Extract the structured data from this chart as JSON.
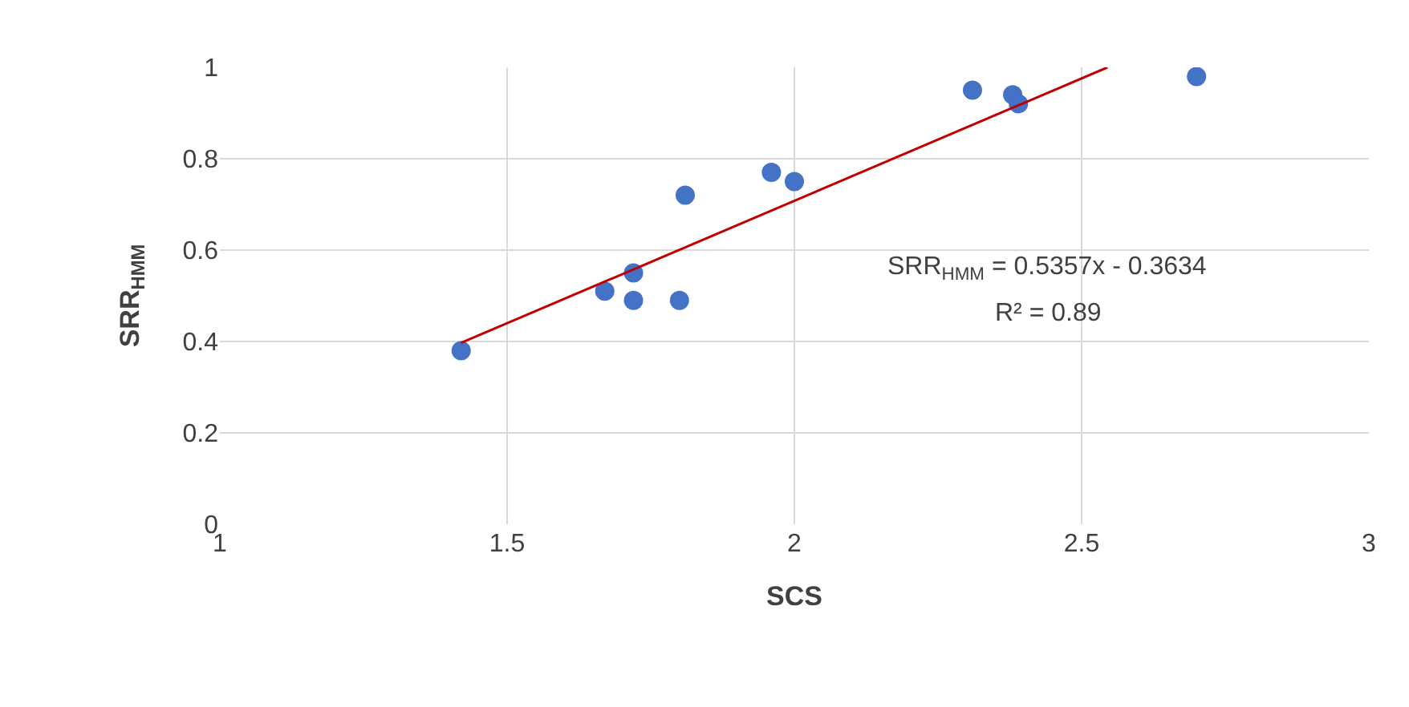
{
  "chart_data": {
    "type": "scatter",
    "xlabel": "SCS",
    "ylabel": "SRR$_{HMM}$",
    "series": [
      {
        "color": "#4472c4",
        "marker": "circle",
        "x": [
          1.42,
          1.67,
          1.72,
          1.72,
          1.8,
          1.81,
          1.96,
          2.0,
          2.31,
          2.38,
          2.39,
          2.7
        ],
        "values": [
          0.38,
          0.51,
          0.55,
          0.49,
          0.49,
          0.72,
          0.77,
          0.75,
          0.95,
          0.94,
          0.92,
          0.98
        ]
      },
      {
        "type": "line",
        "color": "#c00000",
        "marker": "none",
        "line_style": "solid",
        "x": [
          1.42,
          2.545
        ],
        "values": [
          0.397,
          1.0
        ]
      }
    ],
    "xlim": [
      1,
      3
    ],
    "xticks": [
      1,
      1.5,
      2,
      2.5,
      3
    ],
    "ylim": [
      0,
      1
    ],
    "yticks": [
      0,
      0.2,
      0.4,
      0.6,
      0.8,
      1
    ],
    "grid": true,
    "annotations": [
      "SRR$_{HMM}$ = 0.5357x - 0.3634",
      "R² = 0.89"
    ]
  }
}
